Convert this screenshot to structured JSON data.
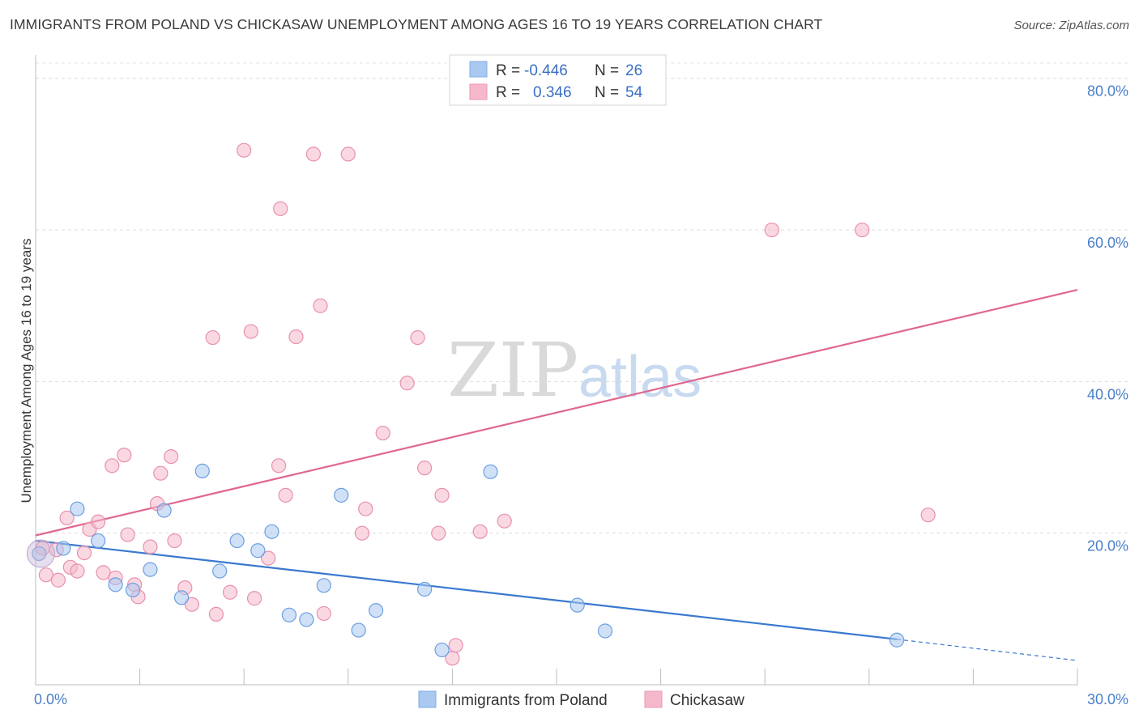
{
  "header": {
    "title": "IMMIGRANTS FROM POLAND VS CHICKASAW UNEMPLOYMENT AMONG AGES 16 TO 19 YEARS CORRELATION CHART",
    "source": "Source: ZipAtlas.com"
  },
  "watermark": {
    "zip": "ZIP",
    "atlas": "atlas"
  },
  "legend": {
    "rows": [
      {
        "r_label": "R =",
        "r_value": "-0.446",
        "n_label": "N =",
        "n_value": "26",
        "color": "#aac8f0"
      },
      {
        "r_label": "R =",
        "r_value": "0.346",
        "n_label": "N =",
        "n_value": "54",
        "color": "#f5b8cb"
      }
    ]
  },
  "bottom_legend": [
    {
      "label": "Immigrants from Poland",
      "color": "#aac8f0"
    },
    {
      "label": "Chickasaw",
      "color": "#f5b8cb"
    }
  ],
  "chart_data": {
    "type": "scatter",
    "title": "IMMIGRANTS FROM POLAND VS CHICKASAW UNEMPLOYMENT AMONG AGES 16 TO 19 YEARS CORRELATION CHART",
    "xlabel": "",
    "ylabel": "Unemployment Among Ages 16 to 19 years",
    "xlim": [
      0,
      30
    ],
    "ylim": [
      0,
      82
    ],
    "x_tick_labels": [
      "0.0%",
      "30.0%"
    ],
    "y_tick_labels": [
      "20.0%",
      "40.0%",
      "60.0%",
      "80.0%"
    ],
    "y_ticks": [
      20,
      40,
      60,
      80
    ],
    "series": [
      {
        "name": "Immigrants from Poland",
        "color": "#6b9fe0",
        "fill": "#aac8f0",
        "trend": {
          "x": [
            0,
            24.8
          ],
          "y": [
            19.0,
            6.0
          ],
          "dashed_x": [
            24.8,
            30
          ],
          "dashed_y": [
            6.0,
            3.2
          ],
          "color": "#3a78d0"
        },
        "points": [
          [
            0.1,
            17.3
          ],
          [
            1.2,
            23.2
          ],
          [
            1.8,
            19.0
          ],
          [
            0.8,
            18.0
          ],
          [
            2.3,
            13.2
          ],
          [
            2.8,
            12.5
          ],
          [
            3.3,
            15.2
          ],
          [
            3.7,
            23.0
          ],
          [
            4.2,
            11.5
          ],
          [
            4.8,
            28.2
          ],
          [
            5.3,
            15.0
          ],
          [
            5.8,
            19.0
          ],
          [
            6.4,
            17.7
          ],
          [
            6.8,
            20.2
          ],
          [
            7.3,
            9.2
          ],
          [
            7.8,
            8.6
          ],
          [
            8.3,
            13.1
          ],
          [
            8.8,
            25.0
          ],
          [
            9.3,
            7.2
          ],
          [
            9.8,
            9.8
          ],
          [
            11.2,
            12.6
          ],
          [
            11.7,
            4.6
          ],
          [
            13.1,
            28.1
          ],
          [
            15.6,
            10.5
          ],
          [
            16.4,
            7.1
          ],
          [
            24.8,
            5.9
          ]
        ]
      },
      {
        "name": "Chickasaw",
        "color": "#e890ac",
        "fill": "#f5b8cb",
        "trend": {
          "x": [
            0,
            30
          ],
          "y": [
            19.7,
            52.1
          ],
          "color": "#e0678f"
        },
        "points": [
          [
            0.2,
            18.0
          ],
          [
            0.3,
            14.5
          ],
          [
            0.6,
            17.8
          ],
          [
            0.65,
            13.8
          ],
          [
            0.9,
            22.0
          ],
          [
            1.0,
            15.5
          ],
          [
            1.2,
            15.0
          ],
          [
            1.4,
            17.4
          ],
          [
            1.55,
            20.5
          ],
          [
            1.8,
            21.5
          ],
          [
            1.95,
            14.8
          ],
          [
            2.2,
            28.9
          ],
          [
            2.3,
            14.1
          ],
          [
            2.55,
            30.3
          ],
          [
            2.65,
            19.8
          ],
          [
            2.85,
            13.2
          ],
          [
            2.95,
            11.6
          ],
          [
            3.3,
            18.2
          ],
          [
            3.5,
            23.9
          ],
          [
            3.6,
            27.9
          ],
          [
            3.9,
            30.1
          ],
          [
            4.0,
            19.0
          ],
          [
            4.3,
            12.8
          ],
          [
            4.5,
            10.6
          ],
          [
            5.1,
            45.8
          ],
          [
            5.2,
            9.3
          ],
          [
            5.6,
            12.2
          ],
          [
            6.0,
            70.5
          ],
          [
            6.2,
            46.6
          ],
          [
            6.3,
            11.4
          ],
          [
            6.7,
            16.7
          ],
          [
            7.0,
            28.9
          ],
          [
            7.05,
            62.8
          ],
          [
            7.2,
            25.0
          ],
          [
            7.5,
            45.9
          ],
          [
            8.0,
            70.0
          ],
          [
            8.2,
            50.0
          ],
          [
            8.3,
            9.4
          ],
          [
            9.0,
            70.0
          ],
          [
            9.4,
            20.0
          ],
          [
            9.5,
            23.2
          ],
          [
            10.0,
            33.2
          ],
          [
            10.7,
            39.8
          ],
          [
            11.0,
            45.8
          ],
          [
            11.2,
            28.6
          ],
          [
            11.6,
            20.0
          ],
          [
            11.7,
            25.0
          ],
          [
            12.0,
            3.5
          ],
          [
            12.1,
            5.2
          ],
          [
            12.8,
            20.2
          ],
          [
            13.5,
            21.6
          ],
          [
            21.2,
            60.0
          ],
          [
            23.8,
            60.0
          ],
          [
            25.7,
            22.4
          ]
        ]
      }
    ]
  }
}
